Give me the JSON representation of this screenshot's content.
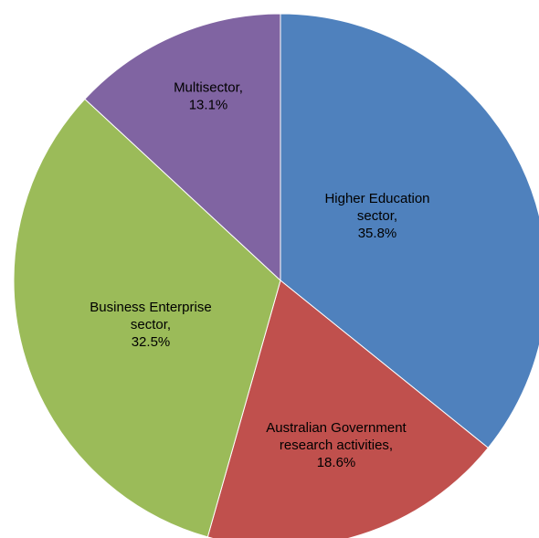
{
  "chart_data": {
    "type": "pie",
    "slices": [
      {
        "category": "Higher Education sector",
        "value": 35.8,
        "label_lines": [
          "Higher Education",
          "sector,",
          "35.8%"
        ],
        "color": "#4F81BD"
      },
      {
        "category": "Australian Government research activities",
        "value": 18.6,
        "label_lines": [
          "Australian Government",
          "research activities,",
          "18.6%"
        ],
        "color": "#C0504D"
      },
      {
        "category": "Business Enterprise sector",
        "value": 32.5,
        "label_lines": [
          "Business Enterprise",
          "sector,",
          "32.5%"
        ],
        "color": "#9BBB59"
      },
      {
        "category": "Multisector",
        "value": 13.1,
        "label_lines": [
          "Multisector,",
          "13.1%"
        ],
        "color": "#8064A2"
      }
    ],
    "start_angle_deg": 0,
    "direction": "clockwise",
    "unit": "%"
  }
}
